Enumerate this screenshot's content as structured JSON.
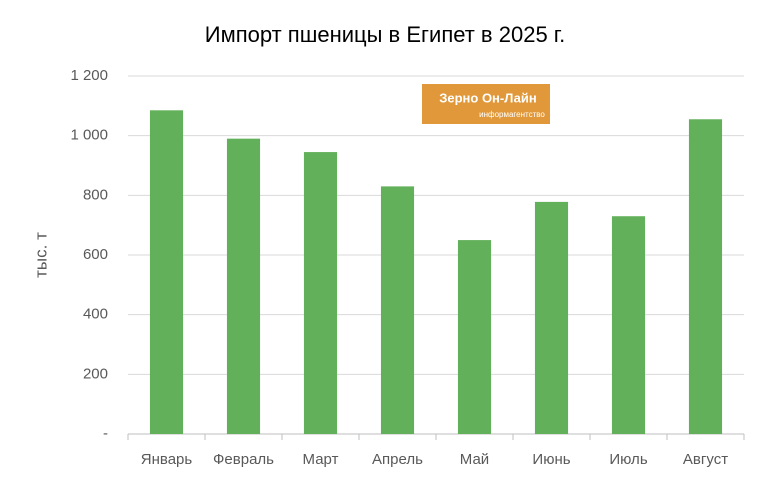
{
  "chart_data": {
    "type": "bar",
    "title": "Импорт пшеницы в Египет в 2025 г.",
    "y_label": "тыс. т",
    "categories": [
      "Январь",
      "Февраль",
      "Март",
      "Апрель",
      "Май",
      "Июнь",
      "Июль",
      "Август"
    ],
    "values": [
      1085,
      990,
      945,
      830,
      650,
      778,
      730,
      1055
    ],
    "color": "#63b05a",
    "ylim": [
      0,
      1200
    ],
    "yticks": [
      {
        "value": 0,
        "label": "-"
      },
      200,
      400,
      600,
      800,
      {
        "value": 1000,
        "label": "1 000"
      },
      {
        "value": 1200,
        "label": "1 200"
      }
    ],
    "grid": true,
    "watermark": {
      "title": "Зерно Он-Лайн",
      "subtitle": "информагентство"
    }
  }
}
